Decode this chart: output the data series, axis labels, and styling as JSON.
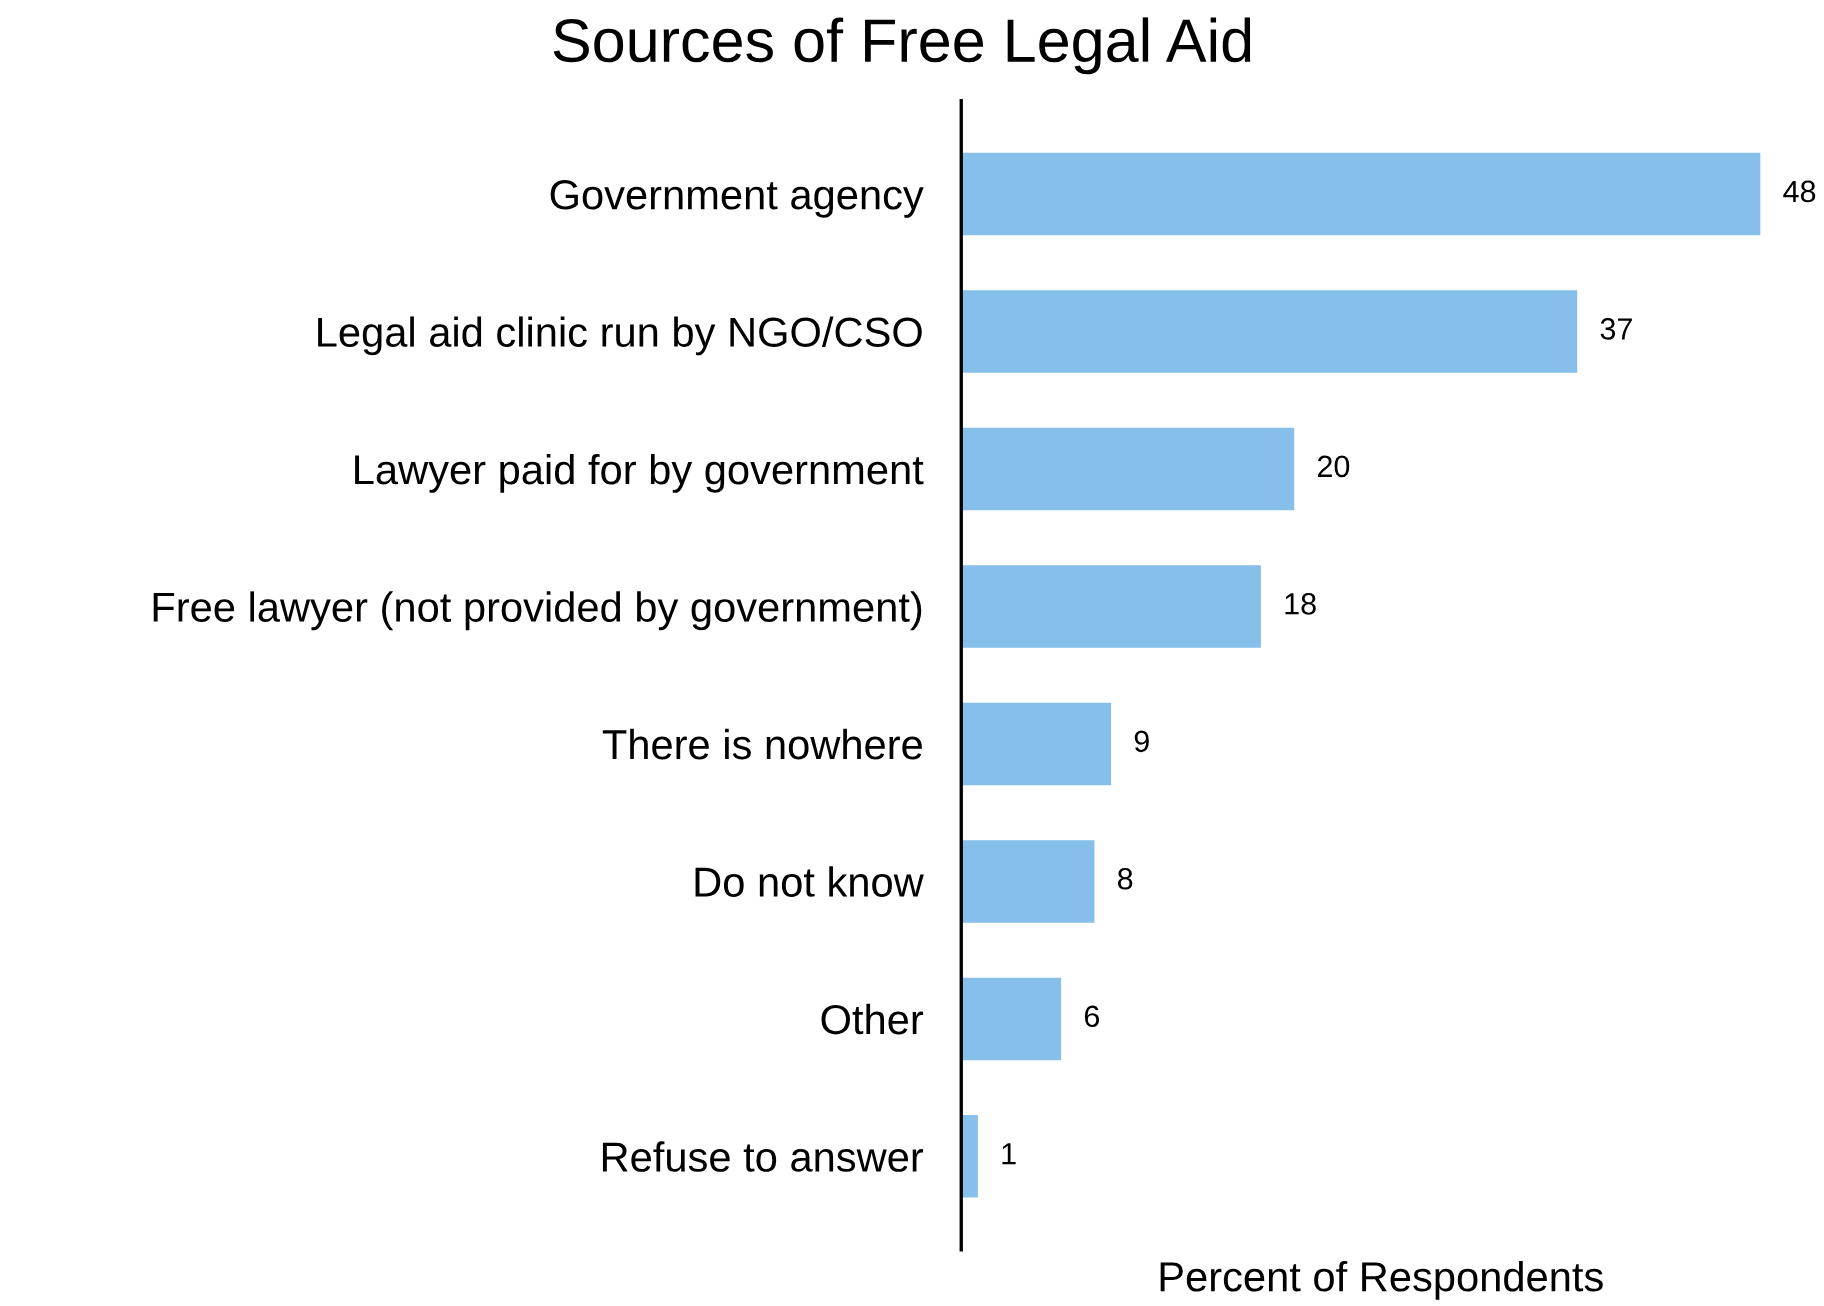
{
  "chart_data": {
    "type": "bar",
    "title": "Sources of Free Legal Aid",
    "xlabel": "Percent of Respondents",
    "orientation": "horizontal",
    "categories": [
      "Government agency",
      "Legal aid clinic run by NGO/CSO",
      "Lawyer paid for by government",
      "Free lawyer (not provided by government)",
      "There is nowhere",
      "Do not know",
      "Other",
      "Refuse to answer"
    ],
    "values": [
      48,
      37,
      20,
      18,
      9,
      8,
      6,
      1
    ],
    "color": "#85bfea",
    "data_labels": true,
    "tick_labels": "y",
    "grid": false,
    "legend": false
  }
}
